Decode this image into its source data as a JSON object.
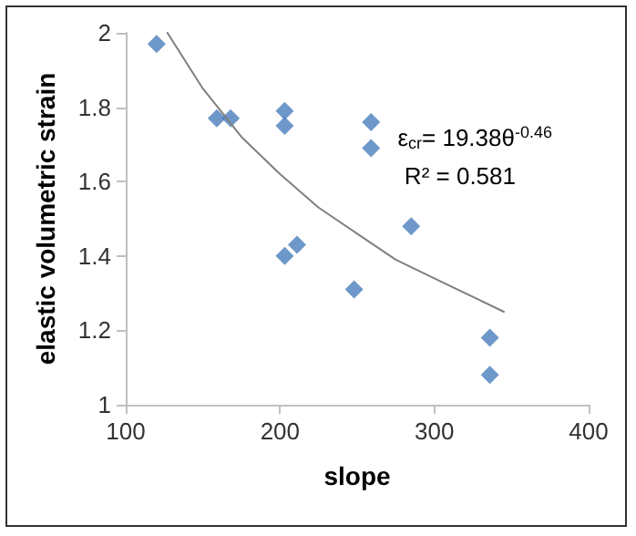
{
  "chart_data": {
    "type": "scatter",
    "xlabel": "slope",
    "ylabel": "elastic volumetric strain",
    "xlim": [
      100,
      400
    ],
    "xticks": [
      100,
      200,
      300,
      400
    ],
    "ylim": [
      1,
      2
    ],
    "yticks": [
      1,
      1.2,
      1.4,
      1.6,
      1.8,
      2
    ],
    "marker": "diamond",
    "series": [
      {
        "color": "#4a7ebb",
        "x": [
          120,
          159,
          168,
          203,
          203,
          259,
          259,
          203,
          211,
          248,
          285,
          336,
          336
        ],
        "values": [
          1.97,
          1.77,
          1.77,
          1.79,
          1.75,
          1.76,
          1.69,
          1.4,
          1.43,
          1.31,
          1.48,
          1.18,
          1.08
        ]
      },
      {
        "type": "line",
        "color": "#7f7f7f",
        "marker": "none",
        "x": [
          127,
          150,
          175,
          200,
          225,
          250,
          275,
          300,
          325,
          345
        ],
        "values": [
          2.0,
          1.85,
          1.72,
          1.62,
          1.53,
          1.46,
          1.39,
          1.34,
          1.29,
          1.25
        ]
      }
    ],
    "annotations": [
      "ε$_{cr}$= 19.38θ$^{-0.46}$",
      "R² = 0.581"
    ]
  }
}
